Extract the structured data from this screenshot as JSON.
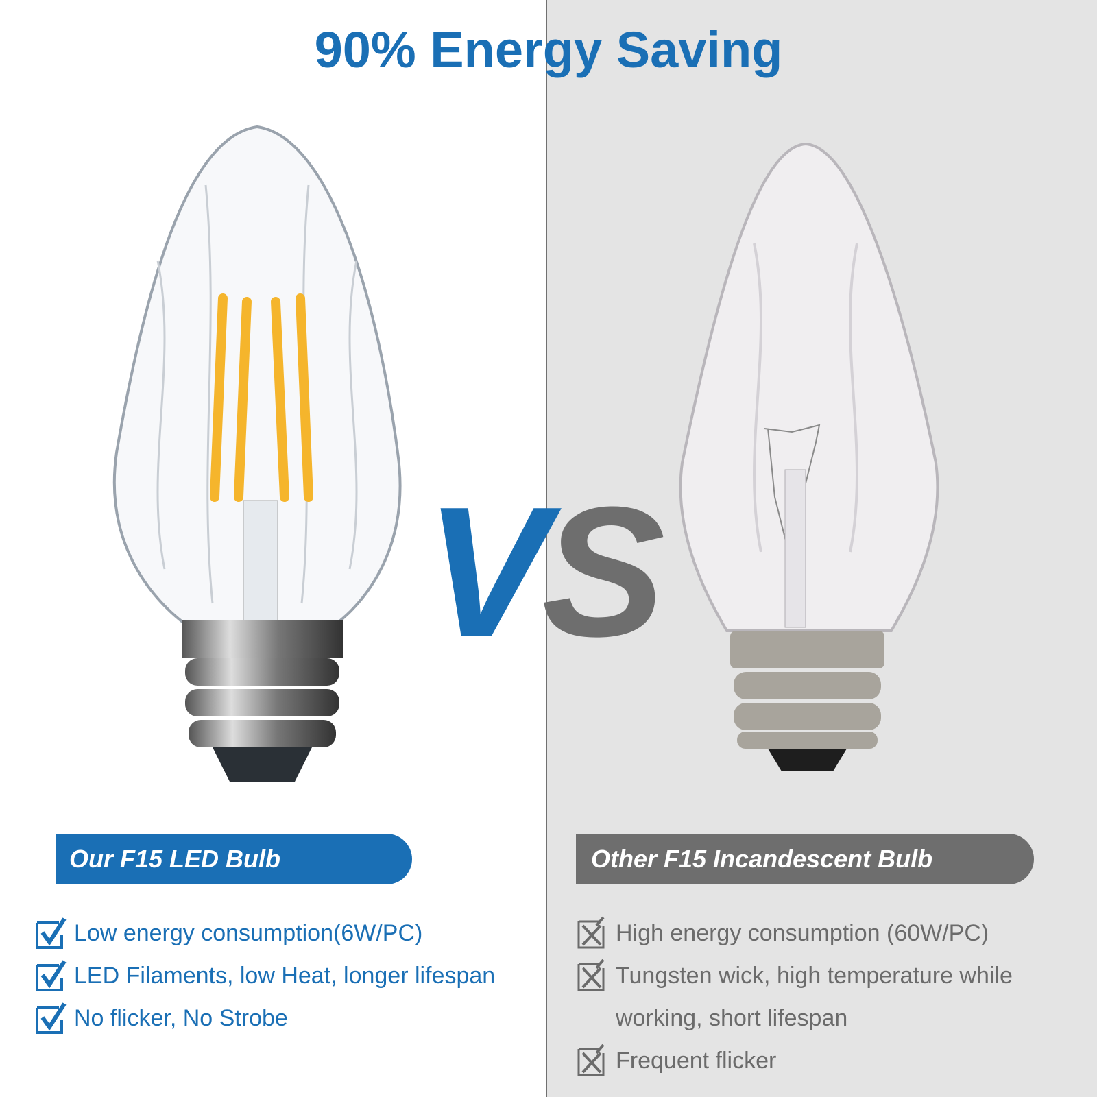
{
  "title": "90% Energy Saving",
  "vs": {
    "v": "V",
    "s": "S"
  },
  "colors": {
    "brand_blue": "#1a6fb5",
    "gray": "#6e6e6e",
    "right_bg": "#e4e4e4"
  },
  "left": {
    "label": "Our F15 LED Bulb",
    "icon": "checkbox-checked-icon",
    "features": [
      "Low energy consumption(6W/PC)",
      "LED Filaments, low Heat, longer lifespan",
      "No flicker, No Strobe"
    ]
  },
  "right": {
    "label": "Other F15 Incandescent Bulb",
    "icon": "checkbox-crossed-icon",
    "features": [
      "High energy consumption (60W/PC)",
      "Tungsten wick, high temperature while",
      "working, short lifespan",
      "Frequent flicker"
    ]
  }
}
